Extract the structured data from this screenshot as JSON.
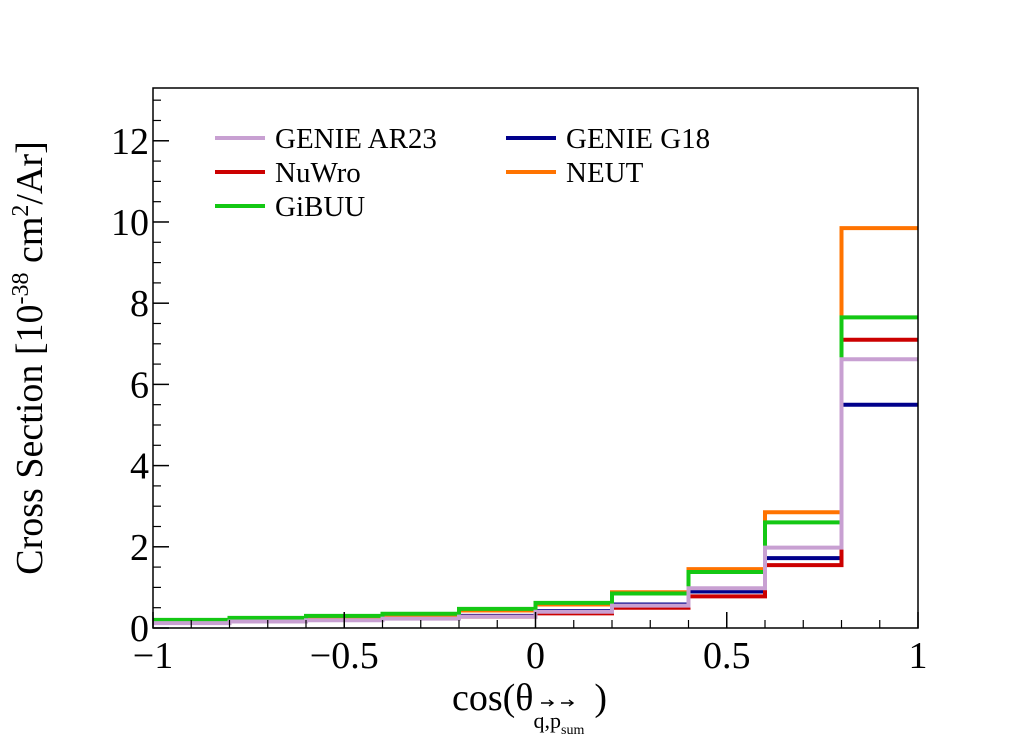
{
  "chart_data": {
    "type": "step",
    "title": "",
    "xlabel": "cos(θ",
    "xlabel_subscript": "q,p",
    "xlabel_subsubscript": "sum",
    "xlabel_close": ")",
    "ylabel": "Cross Section [10",
    "ylabel_exp1": "-38",
    "ylabel_mid": " cm",
    "ylabel_exp2": "2",
    "ylabel_end": "/Ar]",
    "xlim": [
      -1,
      1
    ],
    "ylim": [
      0,
      13.3
    ],
    "xticks": [
      -1,
      -0.5,
      0,
      0.5,
      1
    ],
    "xtick_labels": [
      "−1",
      "−0.5",
      "0",
      "0.5",
      "1"
    ],
    "yticks": [
      0,
      2,
      4,
      6,
      8,
      10,
      12
    ],
    "ytick_labels": [
      "0",
      "2",
      "4",
      "6",
      "8",
      "10",
      "12"
    ],
    "bin_edges": [
      -1,
      -0.8,
      -0.6,
      -0.4,
      -0.2,
      0,
      0.2,
      0.4,
      0.6,
      0.8,
      1
    ],
    "legend": {
      "placement": "top-left",
      "columns": 2
    },
    "series": [
      {
        "name": "GENIE AR23",
        "color": "#c8a0d2",
        "values": [
          0.12,
          0.16,
          0.19,
          0.23,
          0.28,
          0.4,
          0.55,
          0.98,
          1.98,
          6.62
        ]
      },
      {
        "name": "GENIE G18",
        "color": "#00008b",
        "values": [
          0.15,
          0.18,
          0.22,
          0.26,
          0.3,
          0.42,
          0.58,
          0.9,
          1.72,
          5.5
        ]
      },
      {
        "name": "NuWro",
        "color": "#cc0000",
        "values": [
          0.14,
          0.17,
          0.2,
          0.24,
          0.28,
          0.36,
          0.5,
          0.78,
          1.55,
          7.1
        ]
      },
      {
        "name": "NEUT",
        "color": "#ff7300",
        "values": [
          0.17,
          0.22,
          0.27,
          0.32,
          0.43,
          0.58,
          0.88,
          1.45,
          2.85,
          9.85
        ]
      },
      {
        "name": "GiBUU",
        "color": "#14c814",
        "values": [
          0.2,
          0.25,
          0.3,
          0.35,
          0.47,
          0.62,
          0.85,
          1.38,
          2.6,
          7.65
        ]
      }
    ],
    "draw_order": [
      "GENIE G18",
      "NuWro",
      "NEUT",
      "GiBUU",
      "GENIE AR23"
    ],
    "legend_order": [
      "GENIE AR23",
      "GENIE G18",
      "NuWro",
      "NEUT",
      "GiBUU"
    ]
  }
}
